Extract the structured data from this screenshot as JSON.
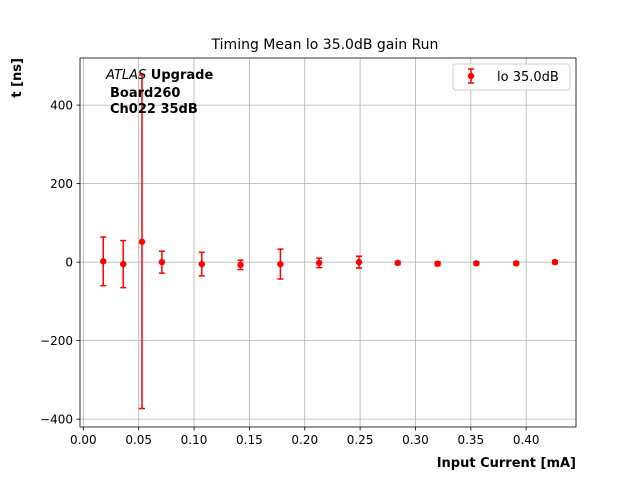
{
  "chart_data": {
    "type": "scatter",
    "title": "Timing Mean lo 35.0dB gain Run",
    "xlabel": "Input Current [mA]",
    "ylabel": "t [ns]",
    "xlim": [
      -0.003,
      0.445
    ],
    "ylim": [
      -420,
      520
    ],
    "xticks": [
      0.0,
      0.05,
      0.1,
      0.15,
      0.2,
      0.25,
      0.3,
      0.35,
      0.4
    ],
    "xtick_labels": [
      "0.00",
      "0.05",
      "0.10",
      "0.15",
      "0.20",
      "0.25",
      "0.30",
      "0.35",
      "0.40"
    ],
    "yticks": [
      -400,
      -200,
      0,
      200,
      400
    ],
    "ytick_labels": [
      "−400",
      "−200",
      "0",
      "200",
      "400"
    ],
    "grid": true,
    "legend_position": "top-right",
    "annotation": {
      "experiment": "ATLAS",
      "experiment_suffix": " Upgrade",
      "line2": "Board260",
      "line3": "Ch022 35dB"
    },
    "series": [
      {
        "name": "lo 35.0dB",
        "color": "#ff0000",
        "x": [
          0.018,
          0.036,
          0.053,
          0.071,
          0.107,
          0.142,
          0.178,
          0.213,
          0.249,
          0.284,
          0.32,
          0.355,
          0.391,
          0.426
        ],
        "y": [
          2,
          -5,
          52,
          0,
          -5,
          -7,
          -5,
          -2,
          0,
          -2,
          -4,
          -3,
          -3,
          0
        ],
        "yerr": [
          62,
          60,
          425,
          28,
          30,
          12,
          38,
          12,
          15,
          4,
          5,
          4,
          4,
          4
        ]
      }
    ]
  }
}
